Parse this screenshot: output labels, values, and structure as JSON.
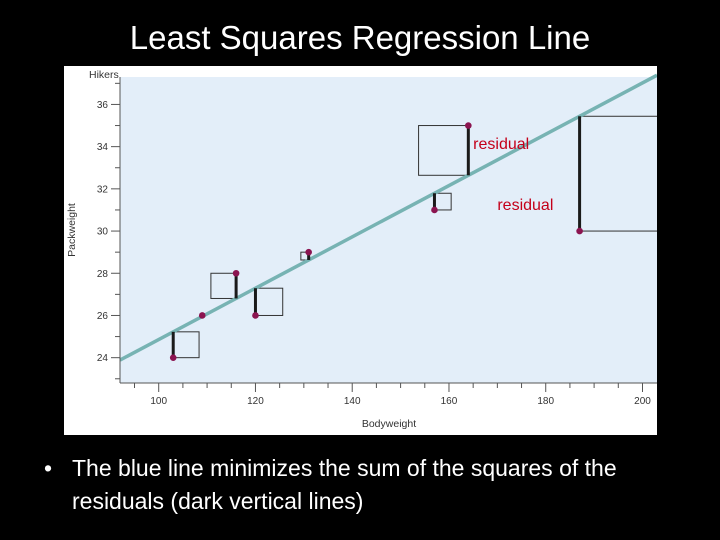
{
  "slide": {
    "title": "Least Squares Regression Line",
    "bullet_symbol": "•",
    "bullet_text": "The blue line minimizes the sum of the squares of the residuals (dark vertical lines)"
  },
  "chart_data": {
    "type": "scatter",
    "ylabel_top": "Hikers",
    "ylabel": "Packweight",
    "xlabel": "Bodyweight",
    "xlim": [
      92,
      203
    ],
    "ylim": [
      22.8,
      37.3
    ],
    "xticks": [
      100,
      120,
      140,
      160,
      180,
      200
    ],
    "yticks": [
      24,
      26,
      28,
      30,
      32,
      34,
      36
    ],
    "grid": false,
    "points": [
      {
        "x": 103,
        "y": 24
      },
      {
        "x": 109,
        "y": 26
      },
      {
        "x": 116,
        "y": 28
      },
      {
        "x": 120,
        "y": 26
      },
      {
        "x": 131,
        "y": 29
      },
      {
        "x": 157,
        "y": 31
      },
      {
        "x": 164,
        "y": 35
      },
      {
        "x": 187,
        "y": 30
      }
    ],
    "regression_line": {
      "slope": 0.1216,
      "intercept": 12.7
    },
    "annotations": [
      {
        "text": "residual",
        "x": 165,
        "y": 33.9
      },
      {
        "text": "residual",
        "x": 170,
        "y": 31.0
      }
    ],
    "colors": {
      "plot_background": "#e3eef9",
      "regression_line": "#77b3b3",
      "points": "#8b1450",
      "residual_lines": "#1a1a1a",
      "annotation_text": "#c4001a"
    }
  }
}
